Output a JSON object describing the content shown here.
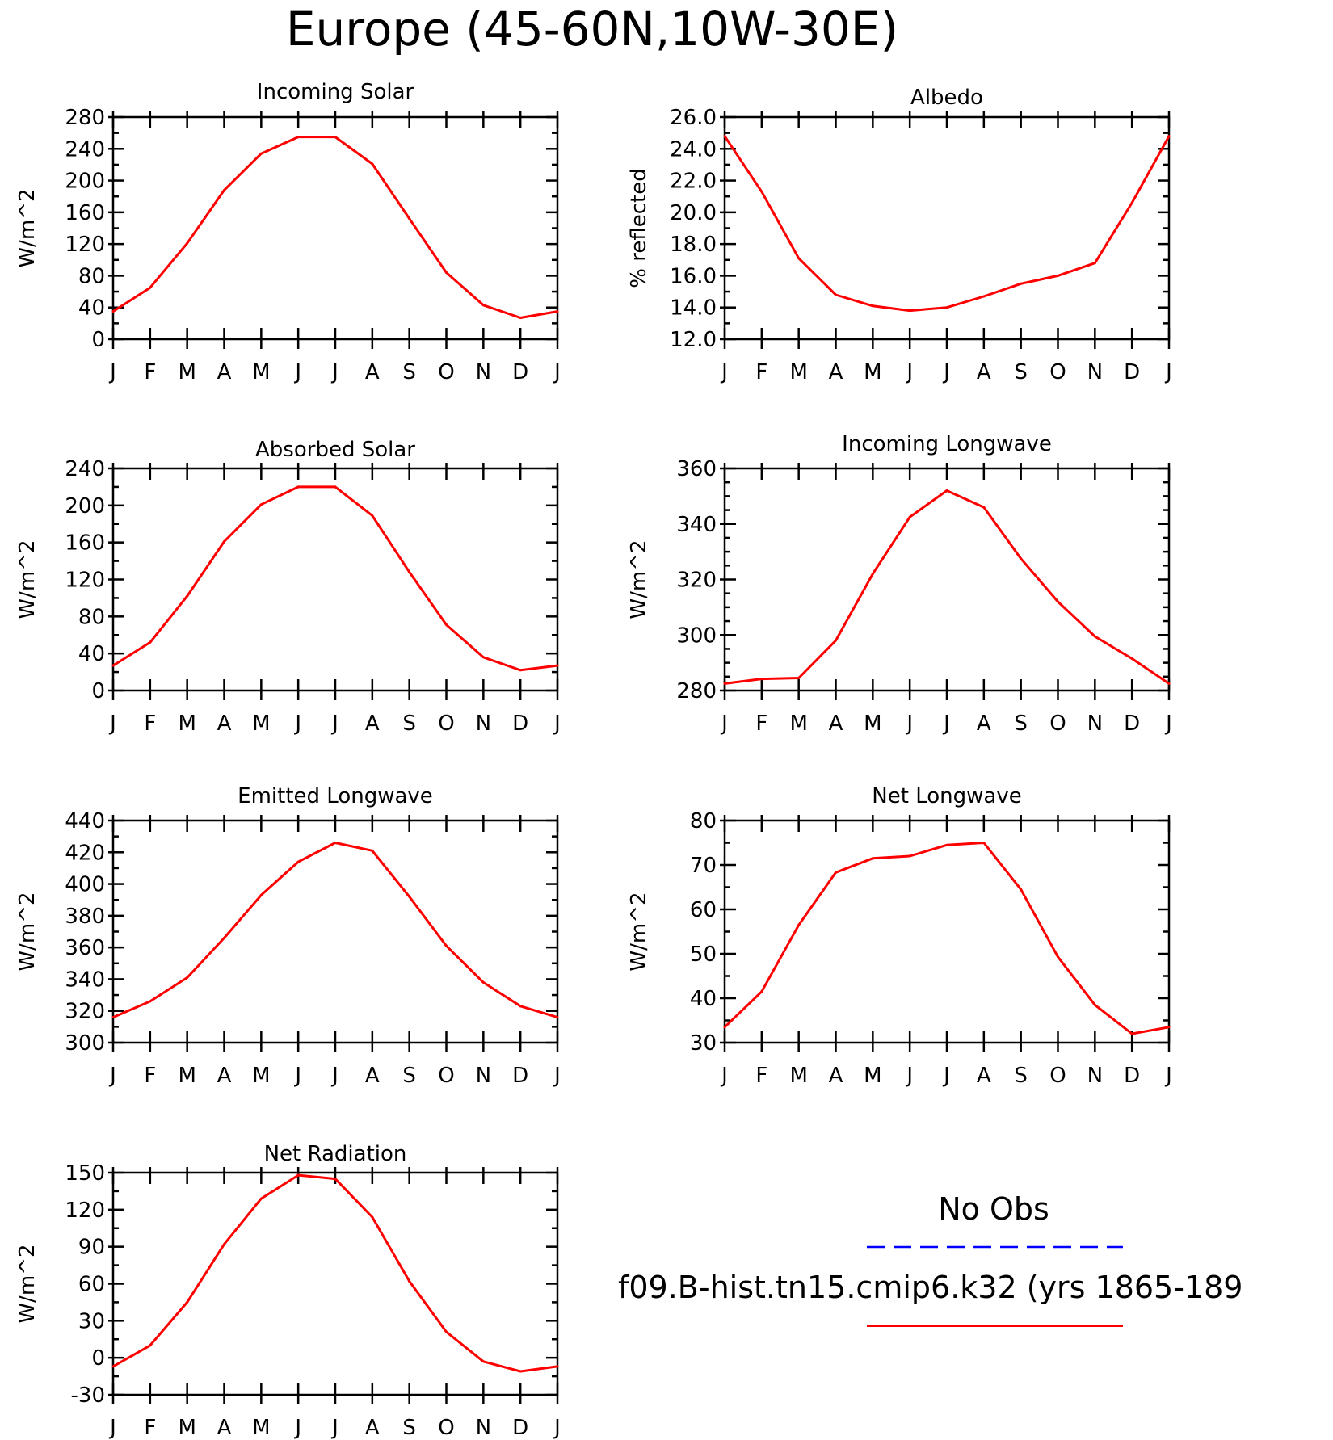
{
  "figure": {
    "title": "Europe (45-60N,10W-30E)"
  },
  "months": [
    "J",
    "F",
    "M",
    "A",
    "M",
    "J",
    "J",
    "A",
    "S",
    "O",
    "N",
    "D",
    "J"
  ],
  "colors": {
    "model": "#ff0000",
    "obs": "#0000ff",
    "axes": "#000000"
  },
  "legend": {
    "obs_label": "No Obs",
    "model_label": "f09.B-hist.tn15.cmip6.k32 (yrs 1865-189"
  },
  "chart_data": [
    {
      "type": "line",
      "title": "Incoming Solar",
      "ylabel": "W/m^2",
      "xlabel": "",
      "categories": [
        "J",
        "F",
        "M",
        "A",
        "M",
        "J",
        "J",
        "A",
        "S",
        "O",
        "N",
        "D",
        "J"
      ],
      "ylim": [
        0,
        280
      ],
      "yticks": [
        0,
        40,
        80,
        120,
        160,
        200,
        240,
        280
      ],
      "ytick_labels": [
        "0",
        "40",
        "80",
        "120",
        "160",
        "200",
        "240",
        "280"
      ],
      "minor_step": 20,
      "grid": false,
      "series": [
        {
          "values": [
            35,
            65,
            121,
            188,
            234,
            255,
            255,
            221,
            152,
            84,
            43,
            27,
            35
          ]
        }
      ]
    },
    {
      "type": "line",
      "title": "Albedo",
      "ylabel": "% reflected",
      "xlabel": "",
      "categories": [
        "J",
        "F",
        "M",
        "A",
        "M",
        "J",
        "J",
        "A",
        "S",
        "O",
        "N",
        "D",
        "J"
      ],
      "ylim": [
        12,
        26
      ],
      "yticks": [
        12,
        14,
        16,
        18,
        20,
        22,
        24,
        26
      ],
      "ytick_labels": [
        "12.0",
        "14.0",
        "16.0",
        "18.0",
        "20.0",
        "22.0",
        "24.0",
        "26.0"
      ],
      "minor_step": 1,
      "grid": false,
      "series": [
        {
          "values": [
            24.8,
            21.3,
            17.1,
            14.8,
            14.1,
            13.8,
            14.0,
            14.7,
            15.5,
            16.0,
            16.8,
            20.6,
            24.8
          ]
        }
      ]
    },
    {
      "type": "line",
      "title": "Absorbed Solar",
      "ylabel": "W/m^2",
      "xlabel": "",
      "categories": [
        "J",
        "F",
        "M",
        "A",
        "M",
        "J",
        "J",
        "A",
        "S",
        "O",
        "N",
        "D",
        "J"
      ],
      "ylim": [
        0,
        240
      ],
      "yticks": [
        0,
        40,
        80,
        120,
        160,
        200,
        240
      ],
      "ytick_labels": [
        "0",
        "40",
        "80",
        "120",
        "160",
        "200",
        "240"
      ],
      "minor_step": 20,
      "grid": false,
      "series": [
        {
          "values": [
            27,
            52,
            102,
            161,
            201,
            220,
            220,
            189,
            128,
            71,
            36,
            22,
            27
          ]
        }
      ]
    },
    {
      "type": "line",
      "title": "Incoming Longwave",
      "ylabel": "W/m^2",
      "xlabel": "",
      "categories": [
        "J",
        "F",
        "M",
        "A",
        "M",
        "J",
        "J",
        "A",
        "S",
        "O",
        "N",
        "D",
        "J"
      ],
      "ylim": [
        280,
        360
      ],
      "yticks": [
        280,
        300,
        320,
        340,
        360
      ],
      "ytick_labels": [
        "280",
        "300",
        "320",
        "340",
        "360"
      ],
      "minor_step": 5,
      "grid": false,
      "series": [
        {
          "values": [
            282.5,
            284.2,
            284.5,
            298,
            322,
            342.5,
            352,
            346,
            327.5,
            312,
            299.5,
            291.5,
            282.5
          ]
        }
      ]
    },
    {
      "type": "line",
      "title": "Emitted Longwave",
      "ylabel": "W/m^2",
      "xlabel": "",
      "categories": [
        "J",
        "F",
        "M",
        "A",
        "M",
        "J",
        "J",
        "A",
        "S",
        "O",
        "N",
        "D",
        "J"
      ],
      "ylim": [
        300,
        440
      ],
      "yticks": [
        300,
        320,
        340,
        360,
        380,
        400,
        420,
        440
      ],
      "ytick_labels": [
        "300",
        "320",
        "340",
        "360",
        "380",
        "400",
        "420",
        "440"
      ],
      "minor_step": 10,
      "grid": false,
      "series": [
        {
          "values": [
            316,
            326,
            341,
            366,
            393,
            414,
            426,
            421,
            392,
            361,
            338,
            323,
            316
          ]
        }
      ]
    },
    {
      "type": "line",
      "title": "Net Longwave",
      "ylabel": "W/m^2",
      "xlabel": "",
      "categories": [
        "J",
        "F",
        "M",
        "A",
        "M",
        "J",
        "J",
        "A",
        "S",
        "O",
        "N",
        "D",
        "J"
      ],
      "ylim": [
        30,
        80
      ],
      "yticks": [
        30,
        40,
        50,
        60,
        70,
        80
      ],
      "ytick_labels": [
        "30",
        "40",
        "50",
        "60",
        "70",
        "80"
      ],
      "minor_step": 5,
      "grid": false,
      "series": [
        {
          "values": [
            33.5,
            41.5,
            56.5,
            68.3,
            71.5,
            72.0,
            74.5,
            75.0,
            64.5,
            49.3,
            38.5,
            32.0,
            33.5
          ]
        }
      ]
    },
    {
      "type": "line",
      "title": "Net Radiation",
      "ylabel": "W/m^2",
      "xlabel": "",
      "categories": [
        "J",
        "F",
        "M",
        "A",
        "M",
        "J",
        "J",
        "A",
        "S",
        "O",
        "N",
        "D",
        "J"
      ],
      "ylim": [
        -30,
        150
      ],
      "yticks": [
        -30,
        0,
        30,
        60,
        90,
        120,
        150
      ],
      "ytick_labels": [
        "-30",
        "0",
        "30",
        "60",
        "90",
        "120",
        "150"
      ],
      "minor_step": 15,
      "grid": false,
      "series": [
        {
          "values": [
            -7,
            10,
            45,
            92,
            129,
            148,
            145,
            114,
            62,
            21,
            -3,
            -11,
            -7
          ]
        }
      ]
    }
  ]
}
